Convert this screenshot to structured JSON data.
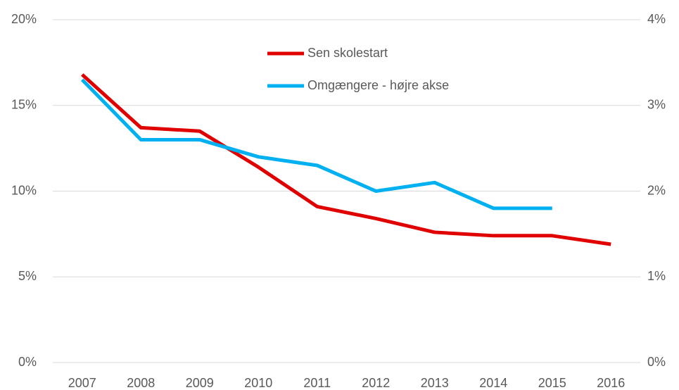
{
  "chart_data": {
    "type": "line",
    "categories": [
      "2007",
      "2008",
      "2009",
      "2010",
      "2011",
      "2012",
      "2013",
      "2014",
      "2015",
      "2016"
    ],
    "series": [
      {
        "name": "Sen skolestart",
        "color": "#e00000",
        "values": [
          16.8,
          13.7,
          13.5,
          11.4,
          9.1,
          8.4,
          7.6,
          7.4,
          7.4,
          6.9
        ]
      },
      {
        "name": "Omgængere - højre akse",
        "color": "#00b0f0",
        "axis": "y2",
        "values": [
          3.3,
          2.6,
          2.6,
          2.4,
          2.3,
          2.0,
          2.1,
          1.8,
          1.8,
          null
        ]
      }
    ],
    "ylim": [
      0,
      20
    ],
    "yticks": [
      {
        "value": 0,
        "label": "0%"
      },
      {
        "value": 5,
        "label": "5%"
      },
      {
        "value": 10,
        "label": "10%"
      },
      {
        "value": 15,
        "label": "15%"
      },
      {
        "value": 20,
        "label": "20%"
      }
    ],
    "y2lim": [
      0,
      4
    ],
    "y2ticks": [
      {
        "value": 0,
        "label": "0%"
      },
      {
        "value": 1,
        "label": "1%"
      },
      {
        "value": 2,
        "label": "2%"
      },
      {
        "value": 3,
        "label": "3%"
      },
      {
        "value": 4,
        "label": "4%"
      }
    ],
    "grid": true,
    "legend": "top"
  }
}
